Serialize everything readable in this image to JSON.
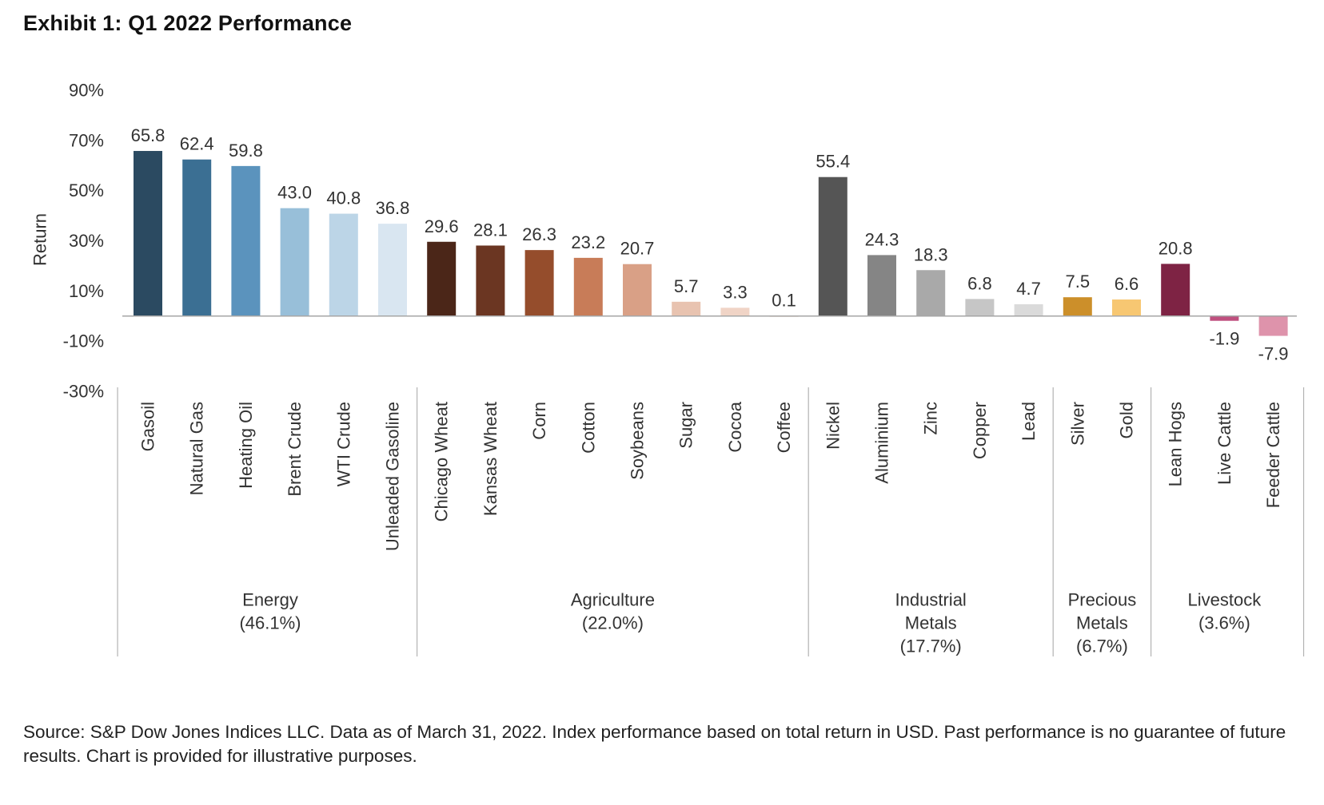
{
  "chart_data": {
    "type": "bar",
    "title": "Exhibit 1: Q1 2022 Performance",
    "ylabel": "Return",
    "xlabel": "",
    "ylim": [
      -30,
      90
    ],
    "yticks": [
      90,
      70,
      50,
      30,
      10,
      -10,
      -30
    ],
    "ytick_labels": [
      "90%",
      "70%",
      "50%",
      "30%",
      "10%",
      "-10%",
      "-30%"
    ],
    "grid": false,
    "legend": "none",
    "categories": [
      "Gasoil",
      "Natural Gas",
      "Heating Oil",
      "Brent Crude",
      "WTI Crude",
      "Unleaded Gasoline",
      "Chicago Wheat",
      "Kansas Wheat",
      "Corn",
      "Cotton",
      "Soybeans",
      "Sugar",
      "Cocoa",
      "Coffee",
      "Nickel",
      "Aluminium",
      "Zinc",
      "Copper",
      "Lead",
      "Silver",
      "Gold",
      "Lean Hogs",
      "Live Cattle",
      "Feeder Cattle"
    ],
    "values": [
      65.8,
      62.4,
      59.8,
      43.0,
      40.8,
      36.8,
      29.6,
      28.1,
      26.3,
      23.2,
      20.7,
      5.7,
      3.3,
      0.1,
      55.4,
      24.3,
      18.3,
      6.8,
      4.7,
      7.5,
      6.6,
      20.8,
      -1.9,
      -7.9
    ],
    "value_labels": [
      "65.8",
      "62.4",
      "59.8",
      "43.0",
      "40.8",
      "36.8",
      "29.6",
      "28.1",
      "26.3",
      "23.2",
      "20.7",
      "5.7",
      "3.3",
      "0.1",
      "55.4",
      "24.3",
      "18.3",
      "6.8",
      "4.7",
      "7.5",
      "6.6",
      "20.8",
      "-1.9",
      "-7.9"
    ],
    "colors": [
      "#2b4a61",
      "#3b6f93",
      "#5b93bd",
      "#98bfd9",
      "#bcd5e7",
      "#d9e6f1",
      "#4b2618",
      "#6b3622",
      "#954d2c",
      "#c87c58",
      "#d9a086",
      "#e8c3b0",
      "#f0d4c6",
      "#f6e8e0",
      "#555555",
      "#858585",
      "#a9a9a9",
      "#c6c6c6",
      "#dadada",
      "#cc8f2a",
      "#f7c772",
      "#7e2344",
      "#bf4f7e",
      "#de93ab"
    ],
    "groups": [
      {
        "name_lines": [
          "Energy",
          "(46.1%)"
        ],
        "count": 6
      },
      {
        "name_lines": [
          "Agriculture",
          "(22.0%)"
        ],
        "count": 8
      },
      {
        "name_lines": [
          "Industrial",
          "Metals",
          "(17.7%)"
        ],
        "count": 5
      },
      {
        "name_lines": [
          "Precious",
          "Metals",
          "(6.7%)"
        ],
        "count": 2
      },
      {
        "name_lines": [
          "Livestock",
          "(3.6%)"
        ],
        "count": 3
      }
    ]
  },
  "source": "Source: S&P Dow Jones Indices LLC. Data as of March 31, 2022. Index performance based on total return in USD. Past performance is no guarantee of future results. Chart is provided for illustrative purposes."
}
